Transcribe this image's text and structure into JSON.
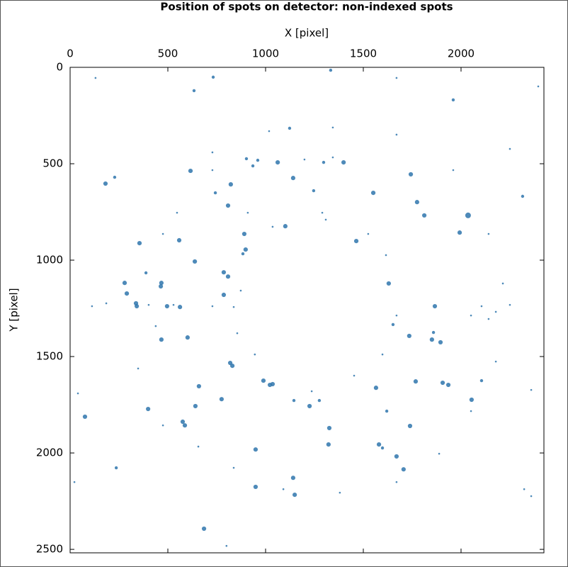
{
  "chart_data": {
    "type": "scatter",
    "title": "Position of spots on detector: non-indexed spots",
    "x_label": "X [pixel]",
    "y_label": "Y [pixel]",
    "color": "#2f76ad",
    "y_inverted": true,
    "xlim": [
      0,
      2424
    ],
    "ylim": [
      0,
      2518
    ],
    "xticks": [
      0,
      500,
      1000,
      1500,
      2000
    ],
    "yticks": [
      0,
      500,
      1000,
      1500,
      2000,
      2500
    ],
    "x": [
      1333,
      1062,
      1297,
      1399,
      1141,
      616,
      228,
      181,
      822,
      1246,
      1551,
      1743,
      1775,
      1812,
      2036,
      1993,
      1464,
      891,
      898,
      884,
      1101,
      558,
      355,
      638,
      786,
      808,
      388,
      467,
      464,
      279,
      290,
      786,
      337,
      341,
      496,
      562,
      1630,
      1866,
      1859,
      1851,
      1895,
      1735,
      1652,
      467,
      601,
      819,
      830,
      989,
      1022,
      1036,
      1145,
      1225,
      1275,
      1565,
      1768,
      1906,
      1935,
      2054,
      2105,
      659,
      641,
      775,
      399,
      76,
      576,
      587,
      1326,
      1620,
      1739,
      949,
      1322,
      1580,
      1598,
      1670,
      1706,
      1141,
      949,
      1149,
      685,
      236,
      2315,
      1960,
      634,
      732,
      1123,
      935,
      743,
      808,
      960,
      902,
      112,
      185,
      402,
      529,
      728,
      837,
      2105,
      2178,
      2250,
      2051,
      2141,
      1199,
      1344,
      728,
      547,
      475,
      438,
      348,
      475,
      656,
      837,
      1091,
      1380,
      1670,
      1888,
      2051,
      2178,
      2214,
      2141,
      1960,
      1670,
      1344,
      1018,
      728,
      909,
      1290,
      1525,
      1616,
      873,
      855,
      945,
      1236,
      1453,
      1598,
      1670,
      1308,
      1036,
      2395,
      130,
      2250,
      2359,
      40,
      22,
      2323,
      800,
      1670,
      2359
    ],
    "values": [
      15,
      493,
      493,
      493,
      574,
      537,
      570,
      603,
      607,
      640,
      651,
      555,
      699,
      768,
      768,
      857,
      901,
      864,
      945,
      967,
      824,
      897,
      912,
      1007,
      1063,
      1085,
      1066,
      1118,
      1136,
      1118,
      1173,
      1180,
      1224,
      1239,
      1239,
      1243,
      1121,
      1239,
      1375,
      1412,
      1426,
      1393,
      1334,
      1412,
      1401,
      1533,
      1548,
      1625,
      1647,
      1643,
      1728,
      1757,
      1728,
      1662,
      1629,
      1636,
      1647,
      1724,
      1625,
      1654,
      1757,
      1721,
      1772,
      1812,
      1838,
      1857,
      1871,
      1783,
      1860,
      1982,
      1956,
      1956,
      1974,
      2018,
      2085,
      2129,
      2176,
      2217,
      2393,
      2077,
      669,
      169,
      121,
      51,
      316,
      511,
      651,
      717,
      482,
      474,
      1239,
      1224,
      1232,
      1232,
      1239,
      1243,
      1239,
      1268,
      1232,
      1287,
      1305,
      478,
      467,
      533,
      754,
      864,
      1342,
      1562,
      1857,
      1967,
      2077,
      2188,
      2206,
      2151,
      2004,
      1783,
      1526,
      1121,
      864,
      533,
      349,
      312,
      331,
      441,
      754,
      754,
      864,
      974,
      1158,
      1379,
      1489,
      1680,
      1599,
      1489,
      1287,
      790,
      827,
      99,
      55,
      423,
      1673,
      1691,
      2151,
      2188,
      2482,
      55,
      2224
    ],
    "sizes": [
      2,
      3,
      2,
      3,
      3,
      3,
      2,
      3,
      3,
      2,
      3,
      3,
      3,
      3,
      4,
      3,
      3,
      3,
      3,
      2,
      3,
      3,
      3,
      3,
      3,
      3,
      2,
      3,
      3,
      3,
      3,
      3,
      3,
      3,
      3,
      3,
      3,
      3,
      2,
      3,
      3,
      3,
      2,
      3,
      3,
      3,
      3,
      3,
      3,
      3,
      2,
      3,
      2,
      3,
      3,
      3,
      3,
      3,
      2,
      3,
      3,
      3,
      3,
      3,
      3,
      3,
      3,
      2,
      3,
      3,
      3,
      3,
      2,
      3,
      3,
      3,
      3,
      3,
      3,
      2,
      2,
      2,
      2,
      2,
      2,
      2,
      2,
      3,
      2,
      2,
      1,
      1,
      1,
      1,
      1,
      1,
      1,
      1,
      1,
      1,
      1,
      1,
      1,
      1,
      1,
      1,
      1,
      1,
      1,
      1,
      1,
      1,
      1,
      1,
      1,
      1,
      1,
      1,
      1,
      1,
      1,
      1,
      1,
      1,
      1,
      1,
      1,
      1,
      1,
      1,
      1,
      1,
      1,
      1,
      1,
      1,
      1,
      1,
      1,
      1,
      1,
      1,
      1,
      1,
      1,
      1,
      1
    ]
  }
}
